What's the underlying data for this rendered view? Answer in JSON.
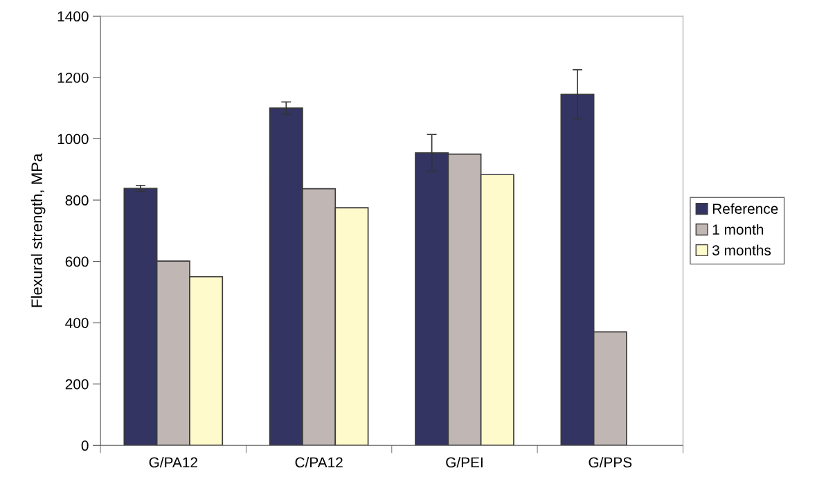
{
  "chart_data": {
    "type": "bar",
    "ylabel": "Flexural strength, MPa",
    "categories": [
      "G/PA12",
      "C/PA12",
      "G/PEI",
      "G/PPS"
    ],
    "series": [
      {
        "name": "Reference",
        "color": "#333462",
        "values": [
          838,
          1100,
          954,
          1145
        ],
        "errors": [
          10,
          20,
          60,
          80
        ]
      },
      {
        "name": "1 month",
        "color": "#c0b7b4",
        "values": [
          601,
          837,
          950,
          370
        ]
      },
      {
        "name": "3 months",
        "color": "#fffacc",
        "values": [
          550,
          775,
          883,
          null
        ]
      }
    ],
    "ylim": [
      0,
      1400
    ],
    "yticks": [
      0,
      200,
      400,
      600,
      800,
      1000,
      1200,
      1400
    ],
    "grid": false,
    "legend": "right"
  }
}
